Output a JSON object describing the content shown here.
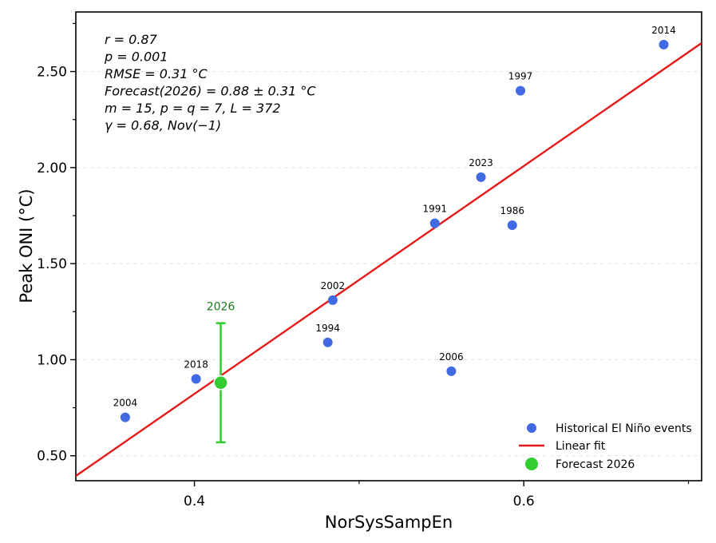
{
  "chart_data": {
    "type": "scatter",
    "xlabel": "NorSysSampEn",
    "ylabel": "Peak ONI (°C)",
    "xlim": [
      0.328,
      0.708
    ],
    "ylim": [
      0.37,
      2.81
    ],
    "x_ticks": [
      0.4,
      0.6
    ],
    "x_minor_ticks": [
      0.5,
      0.7
    ],
    "y_ticks": [
      0.5,
      1.0,
      1.5,
      2.0,
      2.5
    ],
    "y_tick_labels": [
      "0.50",
      "1.00",
      "1.50",
      "2.00",
      "2.50"
    ],
    "y_minor_ticks": [
      0.75,
      1.25,
      1.75,
      2.25,
      2.75
    ],
    "grid": "horizontal-dashed",
    "points": [
      {
        "label": "2004",
        "x": 0.358,
        "y": 0.7
      },
      {
        "label": "2018",
        "x": 0.401,
        "y": 0.9
      },
      {
        "label": "1994",
        "x": 0.481,
        "y": 1.09
      },
      {
        "label": "2002",
        "x": 0.484,
        "y": 1.31
      },
      {
        "label": "1991",
        "x": 0.546,
        "y": 1.71
      },
      {
        "label": "2006",
        "x": 0.556,
        "y": 0.94
      },
      {
        "label": "2023",
        "x": 0.574,
        "y": 1.95
      },
      {
        "label": "1986",
        "x": 0.593,
        "y": 1.7
      },
      {
        "label": "1997",
        "x": 0.598,
        "y": 2.4
      },
      {
        "label": "2014",
        "x": 0.685,
        "y": 2.64
      }
    ],
    "fit": {
      "slope": 5.93,
      "intercept": -1.55,
      "x_range": [
        0.328,
        0.708
      ]
    },
    "forecast": {
      "label": "2026",
      "x": 0.416,
      "y": 0.88,
      "err": 0.31
    },
    "legend": {
      "position": "bottom-right",
      "entries": [
        "Historical El Niño events",
        "Linear fit",
        "Forecast 2026"
      ]
    },
    "annotations": [
      "r = 0.87",
      "p = 0.001",
      "RMSE = 0.31 °C",
      "Forecast(2026) = 0.88 ± 0.31 °C",
      "m = 15, p = q = 7, L = 372",
      "γ = 0.68, Nov(−1)"
    ],
    "colors": {
      "points": "#4169e1",
      "fit": "#e81818",
      "forecast": "#33cc33",
      "forecast_label": "#1a7a1a",
      "grid": "#e4e4e4"
    }
  }
}
